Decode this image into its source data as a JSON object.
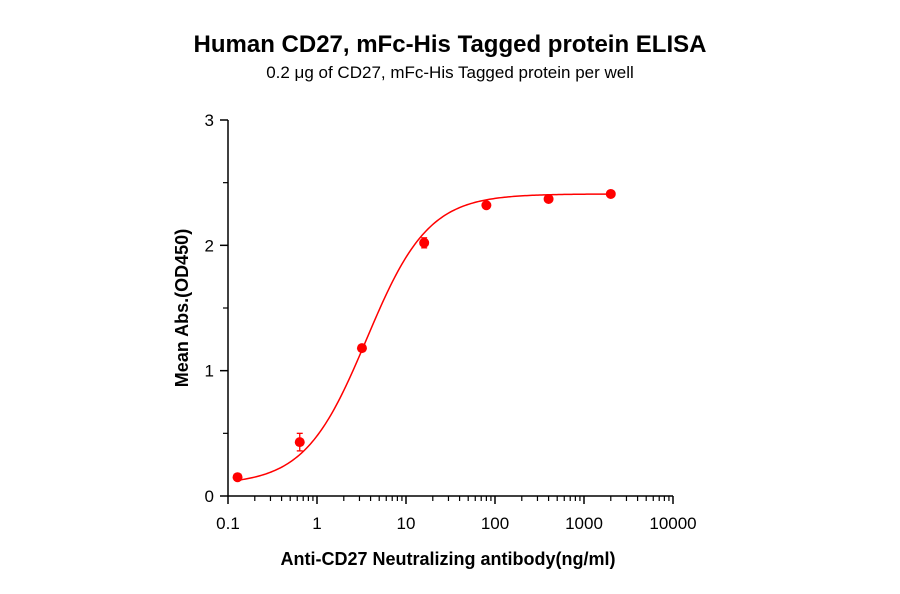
{
  "chart_data": {
    "type": "scatter",
    "title": "Human CD27, mFc-His Tagged protein ELISA",
    "subtitle": "0.2 μg of CD27, mFc-His Tagged protein per well",
    "xlabel": "Anti-CD27 Neutralizing antibody(ng/ml)",
    "ylabel": "Mean Abs.(OD450)",
    "x_scale": "log",
    "xlim": [
      0.1,
      10000
    ],
    "ylim": [
      0,
      3
    ],
    "x_ticks": [
      "0.1",
      "1",
      "10",
      "100",
      "1000",
      "10000"
    ],
    "y_ticks": [
      "0",
      "1",
      "2",
      "3"
    ],
    "grid": false,
    "series": [
      {
        "color": "#ff0000",
        "x": [
          0.128,
          0.64,
          3.2,
          16,
          80,
          400,
          2000
        ],
        "y": [
          0.15,
          0.43,
          1.18,
          2.02,
          2.32,
          2.37,
          2.41
        ],
        "err": [
          0.02,
          0.07,
          0.02,
          0.04,
          0.02,
          0.02,
          0.02
        ]
      }
    ],
    "fit_curve": {
      "model": "4PL",
      "bottom": 0.09,
      "top": 2.41,
      "ec50": 3.6,
      "hill": 1.25
    }
  }
}
